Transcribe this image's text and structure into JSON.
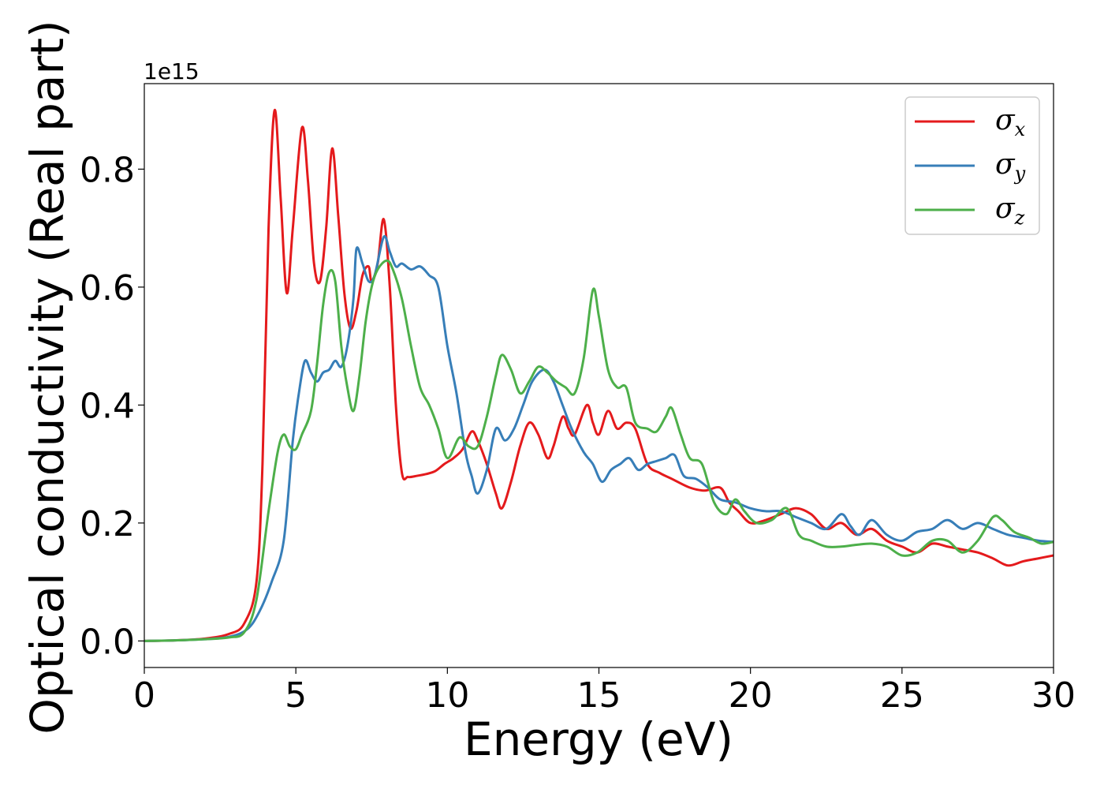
{
  "chart_data": {
    "type": "line",
    "xlabel": "Energy (eV)",
    "ylabel": "Optical conductivity (Real part)",
    "y_offset_text": "1e15",
    "xlim": [
      0,
      30
    ],
    "ylim": [
      -0.045,
      0.945
    ],
    "x_ticks": [
      0,
      5,
      10,
      15,
      20,
      25,
      30
    ],
    "x_tick_labels": [
      "0",
      "5",
      "10",
      "15",
      "20",
      "25",
      "30"
    ],
    "y_ticks": [
      0.0,
      0.2,
      0.4,
      0.6,
      0.8
    ],
    "y_tick_labels": [
      "0.0",
      "0.2",
      "0.4",
      "0.6",
      "0.8"
    ],
    "grid": false,
    "legend_position": "top-right",
    "series": [
      {
        "name": "σx",
        "symbol": "σ",
        "subscript": "x",
        "color": "#e41a1c",
        "points": [
          [
            0,
            0
          ],
          [
            1,
            0.001
          ],
          [
            2,
            0.004
          ],
          [
            2.8,
            0.012
          ],
          [
            3.3,
            0.03
          ],
          [
            3.7,
            0.1
          ],
          [
            3.9,
            0.3
          ],
          [
            4.1,
            0.7
          ],
          [
            4.3,
            0.9
          ],
          [
            4.5,
            0.75
          ],
          [
            4.7,
            0.59
          ],
          [
            4.9,
            0.7
          ],
          [
            5.2,
            0.87
          ],
          [
            5.4,
            0.78
          ],
          [
            5.6,
            0.64
          ],
          [
            5.8,
            0.61
          ],
          [
            6,
            0.7
          ],
          [
            6.2,
            0.835
          ],
          [
            6.4,
            0.72
          ],
          [
            6.6,
            0.59
          ],
          [
            6.8,
            0.53
          ],
          [
            7,
            0.56
          ],
          [
            7.2,
            0.62
          ],
          [
            7.4,
            0.635
          ],
          [
            7.5,
            0.61
          ],
          [
            7.7,
            0.64
          ],
          [
            7.9,
            0.715
          ],
          [
            8.1,
            0.6
          ],
          [
            8.3,
            0.4
          ],
          [
            8.5,
            0.285
          ],
          [
            8.7,
            0.278
          ],
          [
            9,
            0.28
          ],
          [
            9.3,
            0.283
          ],
          [
            9.6,
            0.288
          ],
          [
            9.9,
            0.3
          ],
          [
            10.2,
            0.31
          ],
          [
            10.5,
            0.325
          ],
          [
            10.8,
            0.355
          ],
          [
            11,
            0.34
          ],
          [
            11.3,
            0.3
          ],
          [
            11.6,
            0.25
          ],
          [
            11.8,
            0.225
          ],
          [
            12.1,
            0.27
          ],
          [
            12.4,
            0.33
          ],
          [
            12.7,
            0.37
          ],
          [
            13,
            0.35
          ],
          [
            13.3,
            0.31
          ],
          [
            13.5,
            0.33
          ],
          [
            13.8,
            0.38
          ],
          [
            14,
            0.36
          ],
          [
            14.2,
            0.35
          ],
          [
            14.6,
            0.4
          ],
          [
            14.8,
            0.37
          ],
          [
            15,
            0.35
          ],
          [
            15.3,
            0.39
          ],
          [
            15.6,
            0.36
          ],
          [
            15.9,
            0.37
          ],
          [
            16.2,
            0.36
          ],
          [
            16.6,
            0.3
          ],
          [
            17,
            0.285
          ],
          [
            17.4,
            0.275
          ],
          [
            18,
            0.26
          ],
          [
            18.5,
            0.255
          ],
          [
            19,
            0.26
          ],
          [
            19.3,
            0.235
          ],
          [
            19.6,
            0.22
          ],
          [
            20,
            0.2
          ],
          [
            20.5,
            0.205
          ],
          [
            21,
            0.215
          ],
          [
            21.5,
            0.225
          ],
          [
            22,
            0.215
          ],
          [
            22.5,
            0.19
          ],
          [
            23,
            0.2
          ],
          [
            23.5,
            0.18
          ],
          [
            24,
            0.19
          ],
          [
            24.5,
            0.17
          ],
          [
            25,
            0.16
          ],
          [
            25.5,
            0.15
          ],
          [
            26,
            0.165
          ],
          [
            26.5,
            0.16
          ],
          [
            27,
            0.155
          ],
          [
            27.5,
            0.15
          ],
          [
            28,
            0.14
          ],
          [
            28.5,
            0.128
          ],
          [
            29,
            0.135
          ],
          [
            29.5,
            0.14
          ],
          [
            30,
            0.145
          ]
        ]
      },
      {
        "name": "σy",
        "symbol": "σ",
        "subscript": "y",
        "color": "#377eb8",
        "points": [
          [
            0,
            0
          ],
          [
            1,
            0.001
          ],
          [
            2,
            0.003
          ],
          [
            2.8,
            0.007
          ],
          [
            3.4,
            0.02
          ],
          [
            3.8,
            0.05
          ],
          [
            4.2,
            0.1
          ],
          [
            4.6,
            0.17
          ],
          [
            4.9,
            0.34
          ],
          [
            5.1,
            0.42
          ],
          [
            5.3,
            0.475
          ],
          [
            5.5,
            0.455
          ],
          [
            5.7,
            0.44
          ],
          [
            5.9,
            0.455
          ],
          [
            6.1,
            0.46
          ],
          [
            6.3,
            0.475
          ],
          [
            6.5,
            0.465
          ],
          [
            6.7,
            0.5
          ],
          [
            6.9,
            0.58
          ],
          [
            7,
            0.665
          ],
          [
            7.2,
            0.64
          ],
          [
            7.4,
            0.61
          ],
          [
            7.6,
            0.62
          ],
          [
            7.9,
            0.685
          ],
          [
            8.1,
            0.66
          ],
          [
            8.3,
            0.635
          ],
          [
            8.5,
            0.64
          ],
          [
            8.8,
            0.63
          ],
          [
            9.1,
            0.635
          ],
          [
            9.4,
            0.62
          ],
          [
            9.7,
            0.6
          ],
          [
            10,
            0.5
          ],
          [
            10.3,
            0.42
          ],
          [
            10.6,
            0.32
          ],
          [
            10.8,
            0.28
          ],
          [
            11,
            0.25
          ],
          [
            11.3,
            0.29
          ],
          [
            11.6,
            0.36
          ],
          [
            11.9,
            0.34
          ],
          [
            12.2,
            0.36
          ],
          [
            12.5,
            0.4
          ],
          [
            12.8,
            0.44
          ],
          [
            13.2,
            0.46
          ],
          [
            13.5,
            0.44
          ],
          [
            13.8,
            0.4
          ],
          [
            14.1,
            0.36
          ],
          [
            14.5,
            0.32
          ],
          [
            14.8,
            0.3
          ],
          [
            15.1,
            0.27
          ],
          [
            15.4,
            0.29
          ],
          [
            15.7,
            0.3
          ],
          [
            16,
            0.31
          ],
          [
            16.3,
            0.29
          ],
          [
            16.6,
            0.3
          ],
          [
            16.9,
            0.305
          ],
          [
            17.2,
            0.31
          ],
          [
            17.5,
            0.315
          ],
          [
            17.8,
            0.28
          ],
          [
            18.2,
            0.275
          ],
          [
            18.6,
            0.26
          ],
          [
            19,
            0.24
          ],
          [
            19.5,
            0.235
          ],
          [
            20,
            0.225
          ],
          [
            20.5,
            0.22
          ],
          [
            21,
            0.22
          ],
          [
            21.5,
            0.21
          ],
          [
            22,
            0.2
          ],
          [
            22.5,
            0.19
          ],
          [
            23,
            0.215
          ],
          [
            23.3,
            0.195
          ],
          [
            23.6,
            0.18
          ],
          [
            24,
            0.205
          ],
          [
            24.5,
            0.18
          ],
          [
            25,
            0.17
          ],
          [
            25.5,
            0.185
          ],
          [
            26,
            0.19
          ],
          [
            26.5,
            0.205
          ],
          [
            27,
            0.19
          ],
          [
            27.5,
            0.2
          ],
          [
            28,
            0.19
          ],
          [
            28.5,
            0.18
          ],
          [
            29,
            0.175
          ],
          [
            29.5,
            0.17
          ],
          [
            30,
            0.168
          ]
        ]
      },
      {
        "name": "σz",
        "symbol": "σ",
        "subscript": "z",
        "color": "#4daf4a",
        "points": [
          [
            0,
            0
          ],
          [
            1,
            0.001
          ],
          [
            2,
            0.003
          ],
          [
            2.8,
            0.006
          ],
          [
            3.3,
            0.015
          ],
          [
            3.7,
            0.07
          ],
          [
            4.1,
            0.22
          ],
          [
            4.4,
            0.32
          ],
          [
            4.6,
            0.35
          ],
          [
            4.8,
            0.33
          ],
          [
            5,
            0.325
          ],
          [
            5.2,
            0.35
          ],
          [
            5.5,
            0.39
          ],
          [
            5.7,
            0.47
          ],
          [
            5.9,
            0.57
          ],
          [
            6.1,
            0.625
          ],
          [
            6.3,
            0.61
          ],
          [
            6.5,
            0.5
          ],
          [
            6.7,
            0.43
          ],
          [
            6.9,
            0.39
          ],
          [
            7.1,
            0.45
          ],
          [
            7.3,
            0.54
          ],
          [
            7.5,
            0.6
          ],
          [
            7.7,
            0.63
          ],
          [
            8,
            0.645
          ],
          [
            8.2,
            0.63
          ],
          [
            8.5,
            0.58
          ],
          [
            8.8,
            0.5
          ],
          [
            9.1,
            0.43
          ],
          [
            9.4,
            0.4
          ],
          [
            9.7,
            0.36
          ],
          [
            10,
            0.31
          ],
          [
            10.4,
            0.345
          ],
          [
            10.7,
            0.33
          ],
          [
            11,
            0.33
          ],
          [
            11.3,
            0.38
          ],
          [
            11.6,
            0.45
          ],
          [
            11.8,
            0.485
          ],
          [
            12.1,
            0.46
          ],
          [
            12.4,
            0.42
          ],
          [
            12.7,
            0.44
          ],
          [
            13,
            0.465
          ],
          [
            13.3,
            0.455
          ],
          [
            13.6,
            0.44
          ],
          [
            13.9,
            0.43
          ],
          [
            14.2,
            0.42
          ],
          [
            14.5,
            0.48
          ],
          [
            14.8,
            0.595
          ],
          [
            15,
            0.55
          ],
          [
            15.3,
            0.46
          ],
          [
            15.6,
            0.43
          ],
          [
            15.9,
            0.43
          ],
          [
            16.2,
            0.37
          ],
          [
            16.6,
            0.36
          ],
          [
            16.9,
            0.355
          ],
          [
            17.2,
            0.38
          ],
          [
            17.4,
            0.395
          ],
          [
            17.7,
            0.35
          ],
          [
            18,
            0.31
          ],
          [
            18.4,
            0.3
          ],
          [
            18.8,
            0.235
          ],
          [
            19.2,
            0.215
          ],
          [
            19.5,
            0.24
          ],
          [
            19.8,
            0.22
          ],
          [
            20.2,
            0.2
          ],
          [
            20.7,
            0.205
          ],
          [
            21.2,
            0.225
          ],
          [
            21.6,
            0.18
          ],
          [
            22,
            0.17
          ],
          [
            22.5,
            0.16
          ],
          [
            23,
            0.16
          ],
          [
            23.5,
            0.163
          ],
          [
            24,
            0.165
          ],
          [
            24.5,
            0.16
          ],
          [
            25,
            0.145
          ],
          [
            25.5,
            0.15
          ],
          [
            26,
            0.17
          ],
          [
            26.5,
            0.17
          ],
          [
            27,
            0.15
          ],
          [
            27.5,
            0.17
          ],
          [
            28,
            0.21
          ],
          [
            28.3,
            0.205
          ],
          [
            28.7,
            0.185
          ],
          [
            29.2,
            0.175
          ],
          [
            29.6,
            0.165
          ],
          [
            30,
            0.168
          ]
        ]
      }
    ]
  }
}
